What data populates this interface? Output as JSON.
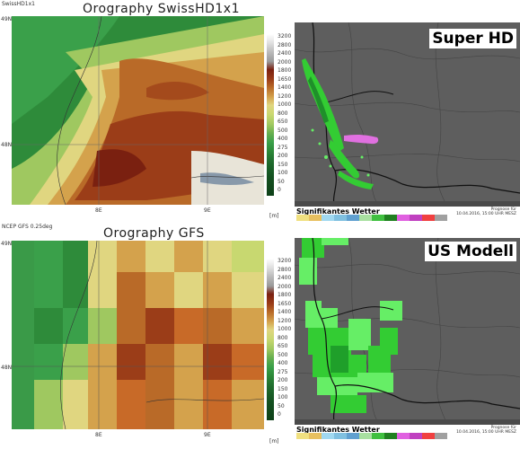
{
  "top_left": {
    "corner_label": "SwissHD1x1",
    "title": "Orography SwissHD1x1",
    "lat_label": "48N",
    "lat_top": "49N",
    "lon_labels": [
      "8E",
      "9E"
    ],
    "unit": "[m]"
  },
  "bottom_left": {
    "corner_label": "NCEP GFS 0.25deg",
    "title": "Orography GFS",
    "lat_label": "48N",
    "lat_top": "49N",
    "lon_labels": [
      "8E",
      "9E"
    ],
    "unit": "[m]"
  },
  "colorbar_ticks": [
    "3200",
    "2800",
    "2400",
    "2000",
    "1800",
    "1650",
    "1400",
    "1200",
    "1000",
    "800",
    "650",
    "500",
    "400",
    "275",
    "200",
    "150",
    "100",
    "50",
    "0"
  ],
  "top_right": {
    "tag": "Super HD"
  },
  "bottom_right": {
    "tag": "US Modell"
  },
  "legend_top": {
    "title": "Signifikantes Wetter",
    "stamp_line1": "Prognose für",
    "stamp_line2": "10.04.2016, 15:00 UHR MESZ"
  },
  "legend_bottom": {
    "title": "Signifikantes Wetter",
    "stamp_line1": "Prognose für",
    "stamp_line2": "10.04.2016, 15:00 UHR MESZ"
  },
  "colors": {
    "map_gray": "#5e5e5e",
    "rain_green": "#33cc33",
    "rain_light": "#66ee66",
    "snow_pink": "#e070e0",
    "border_black": "#1a1a1a"
  }
}
